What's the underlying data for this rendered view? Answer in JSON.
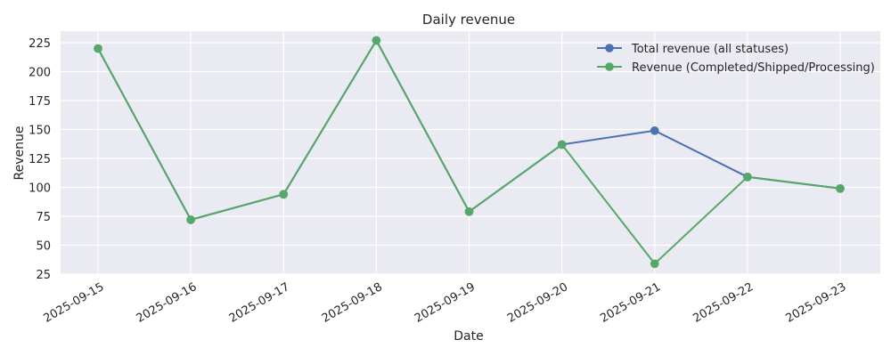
{
  "chart_data": {
    "type": "line",
    "title": "Daily revenue",
    "xlabel": "Date",
    "ylabel": "Revenue",
    "x": [
      "2025-09-15",
      "2025-09-16",
      "2025-09-17",
      "2025-09-18",
      "2025-09-19",
      "2025-09-20",
      "2025-09-21",
      "2025-09-22",
      "2025-09-23"
    ],
    "ylim": [
      25,
      235
    ],
    "yticks": [
      25,
      50,
      75,
      100,
      125,
      150,
      175,
      200,
      225
    ],
    "grid": true,
    "legend_position": "top-right",
    "series": [
      {
        "name": "Total revenue (all statuses)",
        "color": "#4c72b0",
        "marker": "circle",
        "values": [
          220,
          72,
          94,
          227,
          79,
          137,
          149,
          109,
          99
        ]
      },
      {
        "name": "Revenue (Completed/Shipped/Processing)",
        "color": "#55a868",
        "marker": "circle",
        "values": [
          220,
          72,
          94,
          227,
          79,
          137,
          34,
          109,
          99
        ]
      }
    ]
  },
  "colors": {
    "plot_background": "#eaeaf2",
    "grid": "#ffffff",
    "text": "#262626"
  }
}
